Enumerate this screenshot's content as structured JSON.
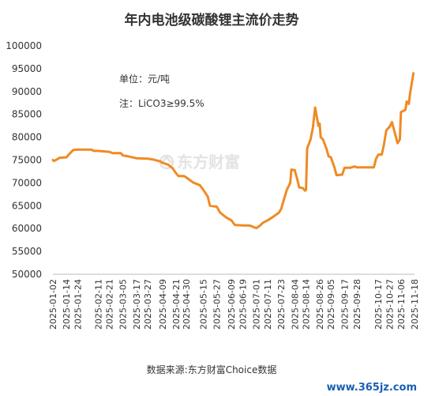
{
  "chart_data": {
    "type": "line",
    "title": "年内电池级碳酸锂主流价走势",
    "annotations": [
      "单位：元/吨",
      "注：LiCO3≥99.5%"
    ],
    "source": "数据来源:东方财富Choice数据",
    "watermark": "东方财富",
    "xlabel": "",
    "ylabel": "",
    "ylim": [
      50000,
      100000
    ],
    "yticks": [
      50000,
      55000,
      60000,
      65000,
      70000,
      75000,
      80000,
      85000,
      90000,
      95000,
      100000
    ],
    "x_range": [
      "2025-01-02",
      "2025-11-18"
    ],
    "x_ticks": [
      "2025-01-02",
      "2025-01-14",
      "2025-01-24",
      "2025-02-11",
      "2025-02-21",
      "2025-03-05",
      "2025-03-17",
      "2025-03-27",
      "2025-04-09",
      "2025-04-21",
      "2025-04-30",
      "2025-05-15",
      "2025-05-27",
      "2025-06-09",
      "2025-06-19",
      "2025-07-01",
      "2025-07-11",
      "2025-07-23",
      "2025-08-04",
      "2025-08-14",
      "2025-08-26",
      "2025-09-05",
      "2025-09-17",
      "2025-09-28",
      "2025-10-17",
      "2025-10-27",
      "2025-11-06",
      "2025-11-18"
    ],
    "grid": false,
    "line_color": "#f08a24",
    "series": [
      {
        "name": "",
        "points": [
          [
            "2025-01-02",
            75000
          ],
          [
            "2025-01-03",
            74800
          ],
          [
            "2025-01-06",
            75200
          ],
          [
            "2025-01-08",
            75500
          ],
          [
            "2025-01-14",
            75600
          ],
          [
            "2025-01-16",
            76200
          ],
          [
            "2025-01-20",
            77200
          ],
          [
            "2025-01-24",
            77300
          ],
          [
            "2025-02-05",
            77300
          ],
          [
            "2025-02-07",
            77000
          ],
          [
            "2025-02-11",
            77000
          ],
          [
            "2025-02-21",
            76800
          ],
          [
            "2025-02-24",
            76500
          ],
          [
            "2025-03-03",
            76500
          ],
          [
            "2025-03-05",
            76000
          ],
          [
            "2025-03-10",
            75800
          ],
          [
            "2025-03-17",
            75400
          ],
          [
            "2025-03-27",
            75300
          ],
          [
            "2025-04-01",
            75100
          ],
          [
            "2025-04-07",
            74700
          ],
          [
            "2025-04-09",
            74400
          ],
          [
            "2025-04-14",
            74000
          ],
          [
            "2025-04-18",
            73200
          ],
          [
            "2025-04-21",
            72100
          ],
          [
            "2025-04-23",
            71500
          ],
          [
            "2025-04-28",
            71500
          ],
          [
            "2025-04-30",
            71200
          ],
          [
            "2025-05-06",
            70100
          ],
          [
            "2025-05-12",
            69500
          ],
          [
            "2025-05-15",
            68500
          ],
          [
            "2025-05-19",
            67000
          ],
          [
            "2025-05-21",
            65000
          ],
          [
            "2025-05-27",
            64800
          ],
          [
            "2025-05-30",
            63500
          ],
          [
            "2025-06-04",
            62500
          ],
          [
            "2025-06-09",
            61800
          ],
          [
            "2025-06-12",
            60800
          ],
          [
            "2025-06-19",
            60700
          ],
          [
            "2025-06-25",
            60700
          ],
          [
            "2025-07-01",
            60100
          ],
          [
            "2025-07-04",
            60600
          ],
          [
            "2025-07-07",
            61300
          ],
          [
            "2025-07-11",
            61800
          ],
          [
            "2025-07-16",
            62600
          ],
          [
            "2025-07-21",
            63500
          ],
          [
            "2025-07-23",
            64300
          ],
          [
            "2025-07-25",
            66000
          ],
          [
            "2025-07-28",
            68500
          ],
          [
            "2025-07-31",
            70000
          ],
          [
            "2025-08-01",
            72900
          ],
          [
            "2025-08-04",
            72800
          ],
          [
            "2025-08-06",
            71000
          ],
          [
            "2025-08-08",
            69000
          ],
          [
            "2025-08-11",
            68900
          ],
          [
            "2025-08-13",
            68300
          ],
          [
            "2025-08-14",
            68500
          ],
          [
            "2025-08-15",
            77500
          ],
          [
            "2025-08-18",
            79500
          ],
          [
            "2025-08-20",
            82000
          ],
          [
            "2025-08-22",
            86500
          ],
          [
            "2025-08-25",
            82500
          ],
          [
            "2025-08-26",
            83000
          ],
          [
            "2025-08-27",
            80000
          ],
          [
            "2025-08-29",
            79500
          ],
          [
            "2025-09-01",
            77500
          ],
          [
            "2025-09-03",
            75800
          ],
          [
            "2025-09-05",
            75600
          ],
          [
            "2025-09-08",
            73500
          ],
          [
            "2025-09-10",
            71700
          ],
          [
            "2025-09-15",
            71800
          ],
          [
            "2025-09-17",
            73300
          ],
          [
            "2025-09-22",
            73300
          ],
          [
            "2025-09-26",
            73600
          ],
          [
            "2025-09-28",
            73400
          ],
          [
            "2025-10-09",
            73400
          ],
          [
            "2025-10-13",
            73400
          ],
          [
            "2025-10-15",
            75300
          ],
          [
            "2025-10-17",
            76200
          ],
          [
            "2025-10-20",
            76200
          ],
          [
            "2025-10-22",
            78500
          ],
          [
            "2025-10-24",
            81500
          ],
          [
            "2025-10-27",
            82300
          ],
          [
            "2025-10-29",
            83300
          ],
          [
            "2025-10-31",
            81500
          ],
          [
            "2025-11-03",
            78700
          ],
          [
            "2025-11-05",
            79500
          ],
          [
            "2025-11-06",
            85500
          ],
          [
            "2025-11-10",
            86000
          ],
          [
            "2025-11-11",
            87800
          ],
          [
            "2025-11-13",
            87300
          ],
          [
            "2025-11-14",
            89500
          ],
          [
            "2025-11-17",
            94000
          ]
        ]
      }
    ]
  },
  "footer": {
    "site_url": "www.365jz.com",
    "url_color": "#1a5fb4"
  }
}
